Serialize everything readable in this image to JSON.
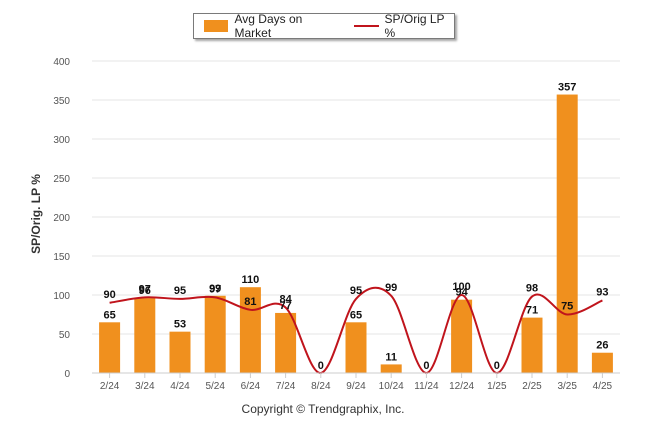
{
  "chart_data": {
    "type": "bar",
    "categories": [
      "2/24",
      "3/24",
      "4/24",
      "5/24",
      "6/24",
      "7/24",
      "8/24",
      "9/24",
      "10/24",
      "11/24",
      "12/24",
      "1/25",
      "2/25",
      "3/25",
      "4/25"
    ],
    "series": [
      {
        "name": "Avg Days on Market",
        "type": "bar",
        "color": "#f0901e",
        "values": [
          65,
          96,
          53,
          99,
          110,
          77,
          0,
          65,
          11,
          0,
          94,
          0,
          71,
          357,
          26
        ]
      },
      {
        "name": "SP/Orig LP %",
        "type": "line",
        "color": "#c0141c",
        "values": [
          90,
          97,
          95,
          97,
          81,
          84,
          null,
          95,
          99,
          null,
          100,
          null,
          98,
          75,
          93
        ]
      }
    ],
    "ylabel": "SP/Orig. LP %",
    "xlabel": "",
    "ylim": [
      0,
      400
    ],
    "yticks": [
      0,
      50,
      100,
      150,
      200,
      250,
      300,
      350,
      400
    ],
    "grid": true,
    "legend_position": "top-center"
  },
  "legend": {
    "bar_label": "Avg Days on Market",
    "line_label": "SP/Orig LP %"
  },
  "footer": {
    "copyright": "Copyright © Trendgraphix, Inc."
  }
}
